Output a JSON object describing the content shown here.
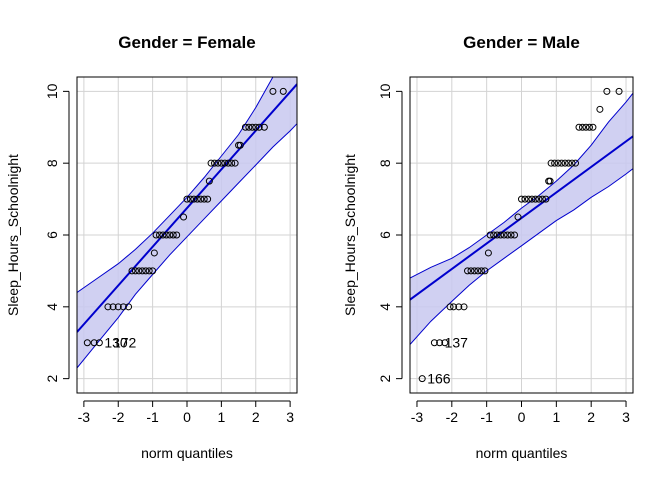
{
  "colors": {
    "line": "#0000cd",
    "band_fill": "#c8c8f0",
    "band_stroke": "#0000cd",
    "grid": "#d3d3d3",
    "points": "#000000",
    "axis": "#000000"
  },
  "chart_data": [
    {
      "type": "scatter",
      "subtype": "qq-plot",
      "title": "Gender = Female",
      "xlabel": "norm quantiles",
      "ylabel": "Sleep_Hours_Schoolnight",
      "xlim": [
        -3.2,
        3.2
      ],
      "ylim": [
        1.6,
        10.4
      ],
      "xticks": [
        -3,
        -2,
        -1,
        0,
        1,
        2,
        3
      ],
      "yticks": [
        2,
        4,
        6,
        8,
        10
      ],
      "grid": true,
      "reference_line": {
        "x": [
          -3.2,
          3.2
        ],
        "y": [
          3.3,
          10.2
        ]
      },
      "envelope": {
        "x": [
          -3.2,
          -2.6,
          -2.0,
          -1.5,
          -1.0,
          -0.5,
          0.0,
          0.5,
          1.0,
          1.5,
          2.0,
          2.5,
          3.0,
          3.2
        ],
        "upper": [
          4.4,
          4.8,
          5.2,
          5.6,
          6.05,
          6.55,
          7.05,
          7.6,
          8.2,
          8.8,
          9.55,
          10.4,
          10.4,
          10.4
        ],
        "lower": [
          2.3,
          3.0,
          3.7,
          4.35,
          4.9,
          5.45,
          5.95,
          6.45,
          6.95,
          7.45,
          7.95,
          8.45,
          8.9,
          9.1
        ]
      },
      "points": [
        {
          "x": -2.9,
          "y": 3
        },
        {
          "x": -2.7,
          "y": 3
        },
        {
          "x": -2.55,
          "y": 3
        },
        {
          "x": -2.3,
          "y": 4
        },
        {
          "x": -2.15,
          "y": 4
        },
        {
          "x": -2.0,
          "y": 4
        },
        {
          "x": -1.85,
          "y": 4
        },
        {
          "x": -1.7,
          "y": 4
        },
        {
          "x": -1.6,
          "y": 5
        },
        {
          "x": -1.5,
          "y": 5
        },
        {
          "x": -1.4,
          "y": 5
        },
        {
          "x": -1.3,
          "y": 5
        },
        {
          "x": -1.2,
          "y": 5
        },
        {
          "x": -1.1,
          "y": 5
        },
        {
          "x": -1.0,
          "y": 5
        },
        {
          "x": -0.95,
          "y": 5.5
        },
        {
          "x": -0.9,
          "y": 6
        },
        {
          "x": -0.8,
          "y": 6
        },
        {
          "x": -0.7,
          "y": 6
        },
        {
          "x": -0.6,
          "y": 6
        },
        {
          "x": -0.5,
          "y": 6
        },
        {
          "x": -0.4,
          "y": 6
        },
        {
          "x": -0.3,
          "y": 6
        },
        {
          "x": -0.1,
          "y": 6.5
        },
        {
          "x": 0.0,
          "y": 7
        },
        {
          "x": 0.1,
          "y": 7
        },
        {
          "x": 0.2,
          "y": 7
        },
        {
          "x": 0.3,
          "y": 7
        },
        {
          "x": 0.4,
          "y": 7
        },
        {
          "x": 0.5,
          "y": 7
        },
        {
          "x": 0.6,
          "y": 7
        },
        {
          "x": 0.65,
          "y": 7.5
        },
        {
          "x": 0.7,
          "y": 8
        },
        {
          "x": 0.8,
          "y": 8
        },
        {
          "x": 0.9,
          "y": 8
        },
        {
          "x": 1.0,
          "y": 8
        },
        {
          "x": 1.1,
          "y": 8
        },
        {
          "x": 1.2,
          "y": 8
        },
        {
          "x": 1.3,
          "y": 8
        },
        {
          "x": 1.4,
          "y": 8
        },
        {
          "x": 1.5,
          "y": 8.5
        },
        {
          "x": 1.55,
          "y": 8.5
        },
        {
          "x": 1.7,
          "y": 9
        },
        {
          "x": 1.8,
          "y": 9
        },
        {
          "x": 1.9,
          "y": 9
        },
        {
          "x": 2.0,
          "y": 9
        },
        {
          "x": 2.1,
          "y": 9
        },
        {
          "x": 2.25,
          "y": 9
        },
        {
          "x": 2.5,
          "y": 10
        },
        {
          "x": 2.8,
          "y": 10
        }
      ],
      "point_labels": [
        {
          "x": -2.55,
          "y": 3,
          "text": "130"
        },
        {
          "x": -2.3,
          "y": 3,
          "text": "172"
        }
      ]
    },
    {
      "type": "scatter",
      "subtype": "qq-plot",
      "title": "Gender = Male",
      "xlabel": "norm quantiles",
      "ylabel": "Sleep_Hours_Schoolnight",
      "xlim": [
        -3.2,
        3.2
      ],
      "ylim": [
        1.6,
        10.4
      ],
      "xticks": [
        -3,
        -2,
        -1,
        0,
        1,
        2,
        3
      ],
      "yticks": [
        2,
        4,
        6,
        8,
        10
      ],
      "grid": true,
      "reference_line": {
        "x": [
          -3.2,
          3.2
        ],
        "y": [
          4.2,
          8.75
        ]
      },
      "envelope": {
        "x": [
          -3.2,
          -2.6,
          -2.0,
          -1.5,
          -1.0,
          -0.5,
          0.0,
          0.5,
          1.0,
          1.5,
          2.0,
          2.5,
          3.0,
          3.2
        ],
        "upper": [
          4.8,
          5.1,
          5.35,
          5.65,
          6.0,
          6.35,
          6.75,
          7.1,
          7.5,
          7.95,
          8.5,
          9.15,
          9.7,
          9.95
        ],
        "lower": [
          2.95,
          3.6,
          4.15,
          4.6,
          5.0,
          5.35,
          5.7,
          6.05,
          6.4,
          6.7,
          7.05,
          7.35,
          7.7,
          7.85
        ]
      },
      "points": [
        {
          "x": -2.85,
          "y": 2
        },
        {
          "x": -2.5,
          "y": 3
        },
        {
          "x": -2.35,
          "y": 3
        },
        {
          "x": -2.2,
          "y": 3
        },
        {
          "x": -2.05,
          "y": 4
        },
        {
          "x": -1.95,
          "y": 4
        },
        {
          "x": -1.8,
          "y": 4
        },
        {
          "x": -1.65,
          "y": 4
        },
        {
          "x": -1.55,
          "y": 5
        },
        {
          "x": -1.45,
          "y": 5
        },
        {
          "x": -1.35,
          "y": 5
        },
        {
          "x": -1.25,
          "y": 5
        },
        {
          "x": -1.15,
          "y": 5
        },
        {
          "x": -1.05,
          "y": 5
        },
        {
          "x": -0.95,
          "y": 5.5
        },
        {
          "x": -0.9,
          "y": 6
        },
        {
          "x": -0.8,
          "y": 6
        },
        {
          "x": -0.7,
          "y": 6
        },
        {
          "x": -0.6,
          "y": 6
        },
        {
          "x": -0.5,
          "y": 6
        },
        {
          "x": -0.4,
          "y": 6
        },
        {
          "x": -0.3,
          "y": 6
        },
        {
          "x": -0.2,
          "y": 6
        },
        {
          "x": -0.1,
          "y": 6.5
        },
        {
          "x": 0.0,
          "y": 7
        },
        {
          "x": 0.1,
          "y": 7
        },
        {
          "x": 0.2,
          "y": 7
        },
        {
          "x": 0.3,
          "y": 7
        },
        {
          "x": 0.4,
          "y": 7
        },
        {
          "x": 0.5,
          "y": 7
        },
        {
          "x": 0.6,
          "y": 7
        },
        {
          "x": 0.7,
          "y": 7
        },
        {
          "x": 0.78,
          "y": 7.5
        },
        {
          "x": 0.82,
          "y": 7.5
        },
        {
          "x": 0.85,
          "y": 8
        },
        {
          "x": 0.95,
          "y": 8
        },
        {
          "x": 1.05,
          "y": 8
        },
        {
          "x": 1.15,
          "y": 8
        },
        {
          "x": 1.25,
          "y": 8
        },
        {
          "x": 1.35,
          "y": 8
        },
        {
          "x": 1.45,
          "y": 8
        },
        {
          "x": 1.55,
          "y": 8
        },
        {
          "x": 1.65,
          "y": 9
        },
        {
          "x": 1.75,
          "y": 9
        },
        {
          "x": 1.85,
          "y": 9
        },
        {
          "x": 1.95,
          "y": 9
        },
        {
          "x": 2.05,
          "y": 9
        },
        {
          "x": 2.25,
          "y": 9.5
        },
        {
          "x": 2.45,
          "y": 10
        },
        {
          "x": 2.8,
          "y": 10
        }
      ],
      "point_labels": [
        {
          "x": -2.35,
          "y": 3,
          "text": "137"
        },
        {
          "x": -2.85,
          "y": 2,
          "text": "166"
        }
      ]
    }
  ]
}
